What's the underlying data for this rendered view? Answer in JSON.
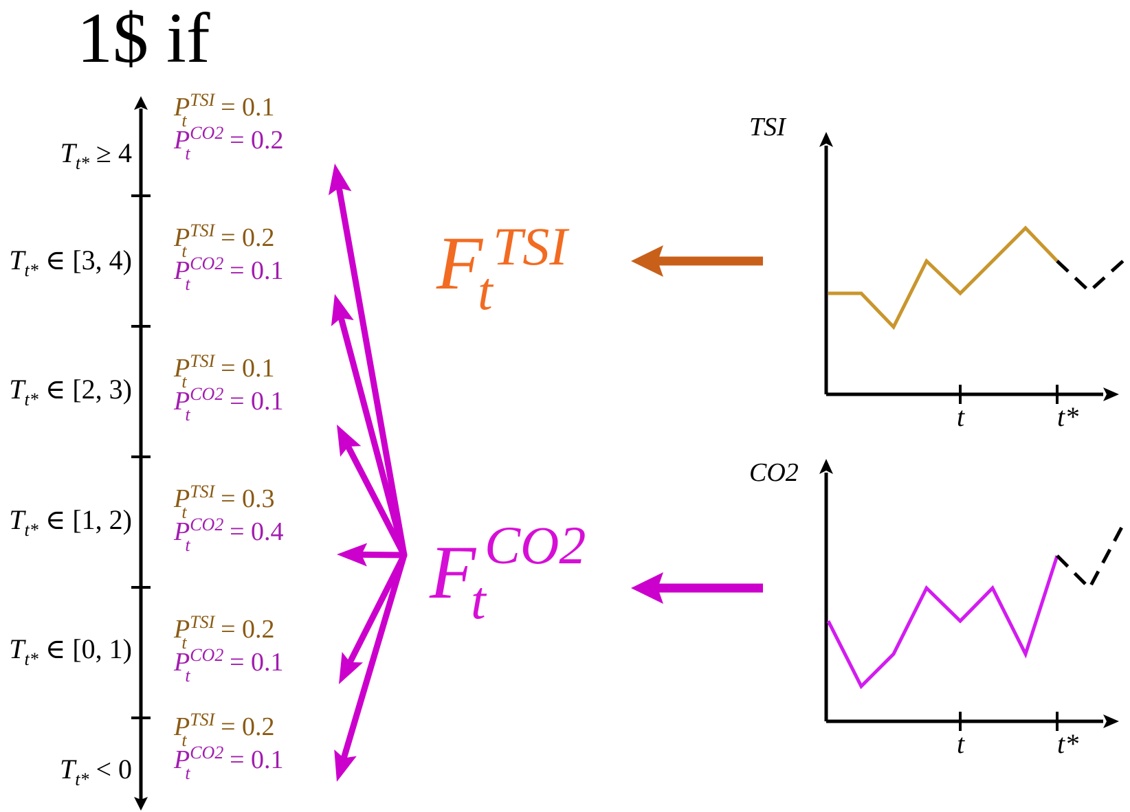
{
  "title": "1$ if",
  "colors": {
    "tsi_text": "#8a5a14",
    "co2_text": "#a21caf",
    "arrow_magenta": "#cc00cc",
    "tsi_F": "#f26b22",
    "co2_F": "#d60fd6",
    "tsi_arrow": "#c8601a",
    "co2_arrow": "#cc00cc",
    "tsi_line": "#c9962d",
    "co2_line": "#d21cf0",
    "axis": "#000000"
  },
  "bins": [
    {
      "label_main": "T",
      "label_sub": "t*",
      "label_rest": " ≥ 4",
      "p_tsi": "= 0.1",
      "p_co2": "= 0.2"
    },
    {
      "label_main": "T",
      "label_sub": "t*",
      "label_rest": " ∈ [3, 4)",
      "p_tsi": "= 0.2",
      "p_co2": "= 0.1"
    },
    {
      "label_main": "T",
      "label_sub": "t*",
      "label_rest": " ∈ [2, 3)",
      "p_tsi": "= 0.1",
      "p_co2": "= 0.1"
    },
    {
      "label_main": "T",
      "label_sub": "t*",
      "label_rest": " ∈ [1, 2)",
      "p_tsi": "= 0.3",
      "p_co2": "= 0.4"
    },
    {
      "label_main": "T",
      "label_sub": "t*",
      "label_rest": " ∈ [0, 1)",
      "p_tsi": "= 0.2",
      "p_co2": "= 0.1"
    },
    {
      "label_main": "T",
      "label_sub": "t*",
      "label_rest": " < 0",
      "p_tsi": "= 0.2",
      "p_co2": "= 0.1"
    }
  ],
  "prob_symbols": {
    "P": "P",
    "sub": "t",
    "tsi_sup": "TSI",
    "co2_sup": "CO2"
  },
  "forecasts": {
    "tsi": {
      "F": "F",
      "sub": "t",
      "sup": "TSI"
    },
    "co2": {
      "F": "F",
      "sub": "t",
      "sup": "CO2"
    }
  },
  "plots": {
    "tsi": {
      "ylabel": "TSI",
      "tick_t": "t",
      "tick_tstar": "t*"
    },
    "co2": {
      "ylabel": "CO2",
      "tick_t": "t",
      "tick_tstar": "t*"
    }
  }
}
